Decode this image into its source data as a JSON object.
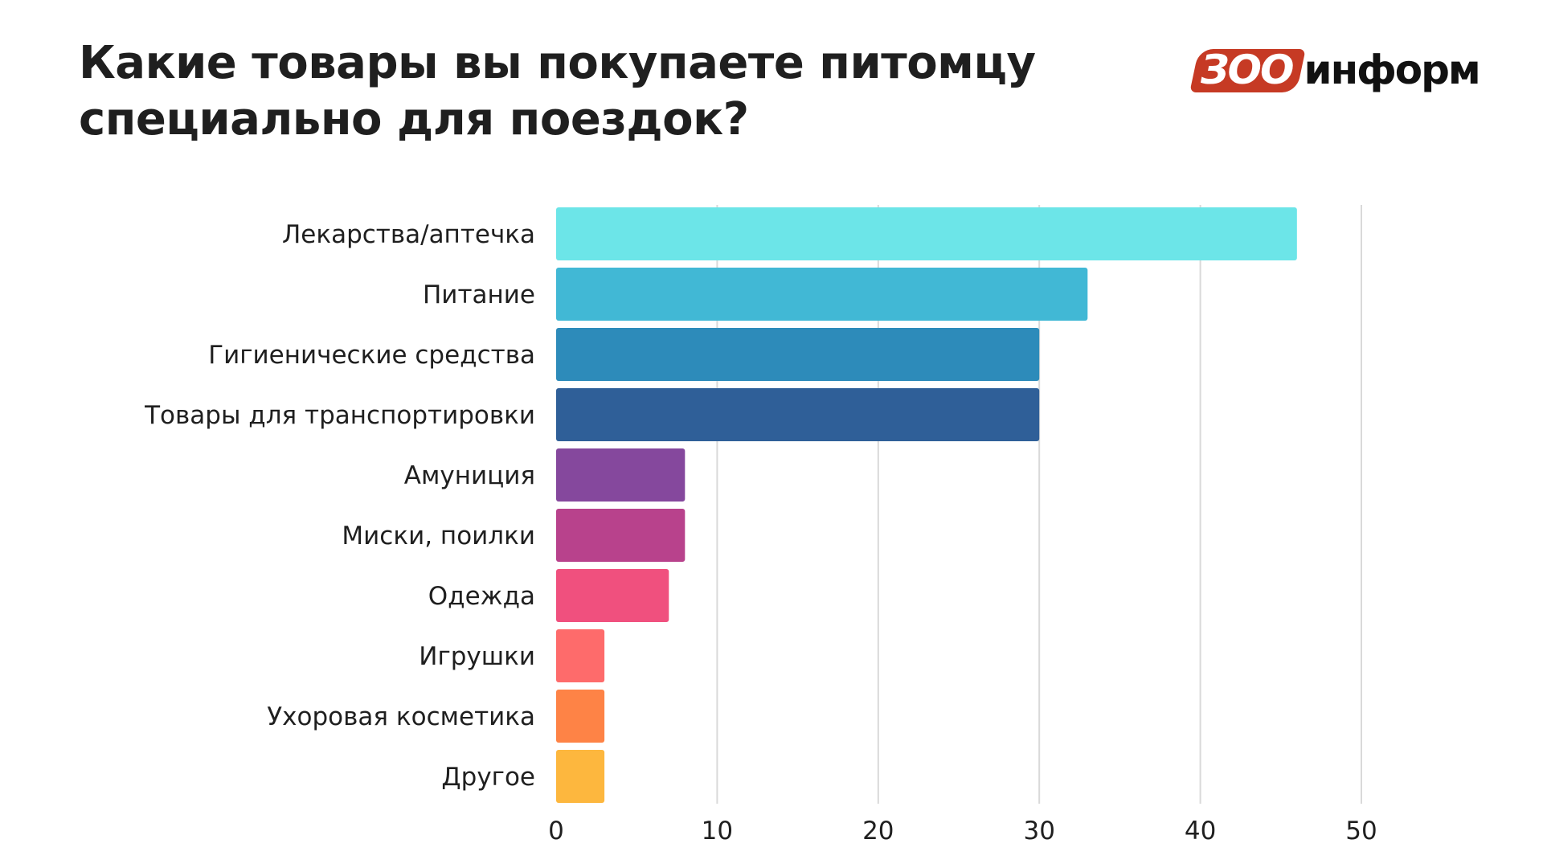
{
  "title_line1": "Какие товары вы покупаете питомцу",
  "title_line2": "специально для поездок?",
  "logo": {
    "badge_text": "ЗОО",
    "word": "информ",
    "badge_color": "#c63a24"
  },
  "chart_data": {
    "type": "bar",
    "orientation": "horizontal",
    "title": "Какие товары вы покупаете питомцу специально для поездок?",
    "xlabel": "",
    "ylabel": "",
    "xlim": [
      0,
      50
    ],
    "ticks": [
      0,
      10,
      20,
      30,
      40,
      50
    ],
    "grid": true,
    "categories": [
      "Лекарства/аптечка",
      "Питание",
      "Гигиенические средства",
      "Товары для транспортировки",
      "Амуниция",
      "Миски, поилки",
      "Одежда",
      "Игрушки",
      "Ухоровая косметика",
      "Другое"
    ],
    "values": [
      46,
      33,
      30,
      30,
      8,
      8,
      7,
      3,
      3,
      3
    ],
    "colors": [
      "#6ce5e8",
      "#41b8d5",
      "#2d8bba",
      "#2f5f98",
      "#85489d",
      "#b8428c",
      "#f0507e",
      "#fe6b6b",
      "#fe8346",
      "#fdb73e"
    ]
  }
}
